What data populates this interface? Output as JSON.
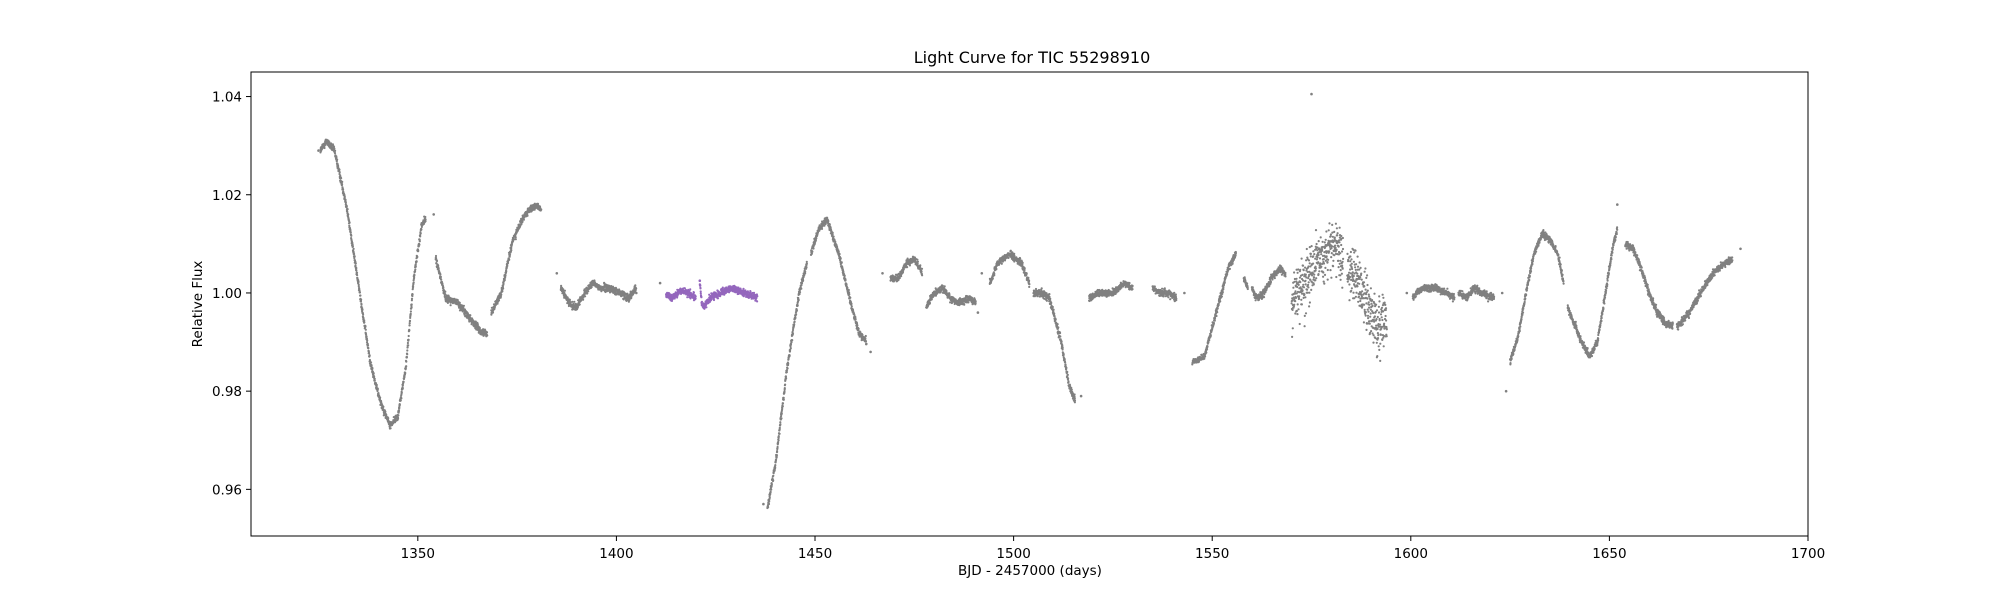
{
  "chart_data": {
    "type": "scatter",
    "title": "Light Curve for TIC 55298910",
    "xlabel": "BJD - 2457000 (days)",
    "ylabel": "Relative Flux",
    "xlim": [
      1308,
      1700
    ],
    "ylim": [
      0.9505,
      1.045
    ],
    "x_ticks": [
      1350,
      1400,
      1450,
      1500,
      1550,
      1600,
      1650,
      1700
    ],
    "x_tick_labels": [
      "1350",
      "1400",
      "1450",
      "1500",
      "1550",
      "1600",
      "1650",
      "1700"
    ],
    "y_ticks": [
      0.96,
      0.98,
      1.0,
      1.02,
      1.04
    ],
    "y_tick_labels": [
      "0.96",
      "0.98",
      "1.00",
      "1.02",
      "1.04"
    ],
    "grid": false,
    "legend": "none",
    "colors": {
      "main": "#808080",
      "highlight": "#9467bd"
    },
    "series": [
      {
        "color": "#808080",
        "noise": 0.0006,
        "segments": [
          [
            [
              1325.5,
              1.029
            ],
            [
              1327,
              1.031
            ],
            [
              1329,
              1.029
            ],
            [
              1332,
              1.018
            ],
            [
              1335,
              1.002
            ],
            [
              1338,
              0.986
            ],
            [
              1339.5,
              0.981
            ],
            [
              1341,
              0.977
            ],
            [
              1343,
              0.973
            ],
            [
              1345,
              0.975
            ],
            [
              1347,
              0.985
            ],
            [
              1349,
              1.003
            ],
            [
              1351,
              1.014
            ],
            [
              1352,
              1.015
            ]
          ],
          [
            [
              1354.5,
              1.007
            ],
            [
              1357,
              0.999
            ],
            [
              1360,
              0.998
            ],
            [
              1363,
              0.995
            ],
            [
              1366,
              0.992
            ],
            [
              1367.5,
              0.992
            ]
          ],
          [
            [
              1368.5,
              0.996
            ],
            [
              1371,
              1.0
            ],
            [
              1374,
              1.011
            ],
            [
              1377,
              1.016
            ],
            [
              1380,
              1.018
            ],
            [
              1381,
              1.017
            ]
          ],
          [
            [
              1386,
              1.001
            ],
            [
              1388,
              0.998
            ],
            [
              1390,
              0.997
            ],
            [
              1392,
              1.0
            ],
            [
              1394,
              1.002
            ],
            [
              1396,
              1.001
            ],
            [
              1398,
              1.001
            ],
            [
              1401,
              1.0
            ],
            [
              1403,
              0.999
            ],
            [
              1405,
              1.001
            ]
          ],
          [
            [
              1438,
              0.956
            ],
            [
              1440,
              0.965
            ],
            [
              1443,
              0.985
            ],
            [
              1446,
              1.0
            ],
            [
              1448,
              1.006
            ]
          ],
          [
            [
              1449,
              1.008
            ],
            [
              1451,
              1.013
            ],
            [
              1453,
              1.015
            ],
            [
              1456,
              1.008
            ],
            [
              1459,
              0.998
            ],
            [
              1461,
              0.992
            ],
            [
              1463,
              0.99
            ]
          ],
          [
            [
              1469,
              1.003
            ],
            [
              1471,
              1.003
            ],
            [
              1473,
              1.006
            ],
            [
              1475,
              1.007
            ],
            [
              1477,
              1.004
            ]
          ],
          [
            [
              1478,
              0.997
            ],
            [
              1480,
              1.0
            ],
            [
              1482,
              1.001
            ],
            [
              1484,
              0.999
            ],
            [
              1486,
              0.998
            ],
            [
              1489,
              0.999
            ],
            [
              1490.5,
              0.998
            ]
          ],
          [
            [
              1494,
              1.002
            ],
            [
              1496,
              1.006
            ],
            [
              1499,
              1.008
            ],
            [
              1502,
              1.006
            ],
            [
              1504,
              1.002
            ]
          ],
          [
            [
              1505,
              1.0
            ],
            [
              1507,
              1.0
            ],
            [
              1509,
              0.999
            ],
            [
              1512,
              0.99
            ],
            [
              1514,
              0.981
            ],
            [
              1515.5,
              0.978
            ]
          ],
          [
            [
              1519,
              0.999
            ],
            [
              1522,
              1.0
            ],
            [
              1525,
              1.0
            ],
            [
              1528,
              1.002
            ],
            [
              1530,
              1.001
            ]
          ],
          [
            [
              1535,
              1.001
            ],
            [
              1537,
              1.0
            ],
            [
              1539,
              1.0
            ],
            [
              1541,
              0.999
            ]
          ],
          [
            [
              1545,
              0.986
            ],
            [
              1548,
              0.987
            ],
            [
              1551,
              0.996
            ],
            [
              1554,
              1.005
            ],
            [
              1556,
              1.008
            ]
          ],
          [
            [
              1558,
              1.003
            ],
            [
              1559,
              1.001
            ]
          ],
          [
            [
              1560,
              1.001
            ],
            [
              1561,
              0.999
            ],
            [
              1563,
              1.0
            ],
            [
              1565,
              1.003
            ],
            [
              1567,
              1.005
            ],
            [
              1568.5,
              1.004
            ]
          ],
          [
            [
              1600.5,
              0.999
            ],
            [
              1603,
              1.001
            ],
            [
              1606,
              1.001
            ],
            [
              1609,
              1.0
            ],
            [
              1611,
              0.999
            ]
          ],
          [
            [
              1612,
              1.0
            ],
            [
              1614,
              0.999
            ],
            [
              1616,
              1.001
            ],
            [
              1618,
              1.0
            ],
            [
              1621,
              0.999
            ]
          ],
          [
            [
              1625,
              0.986
            ],
            [
              1627,
              0.991
            ],
            [
              1629,
              1.0
            ],
            [
              1631,
              1.008
            ],
            [
              1633,
              1.012
            ],
            [
              1635,
              1.011
            ],
            [
              1637,
              1.008
            ],
            [
              1638.5,
              1.002
            ]
          ],
          [
            [
              1639.5,
              0.997
            ],
            [
              1641,
              0.994
            ],
            [
              1643,
              0.99
            ],
            [
              1645,
              0.987
            ],
            [
              1647,
              0.99
            ],
            [
              1649,
              1.0
            ],
            [
              1651,
              1.01
            ],
            [
              1652,
              1.013
            ]
          ],
          [
            [
              1654,
              1.01
            ],
            [
              1656,
              1.009
            ],
            [
              1658,
              1.005
            ],
            [
              1660,
              1.0
            ],
            [
              1662,
              0.996
            ],
            [
              1664,
              0.994
            ],
            [
              1666,
              0.993
            ]
          ],
          [
            [
              1667,
              0.993
            ],
            [
              1670,
              0.996
            ],
            [
              1673,
              1.0
            ],
            [
              1676,
              1.004
            ],
            [
              1679,
              1.006
            ],
            [
              1681,
              1.007
            ]
          ]
        ],
        "outliers": [
          [
            1325,
            1.029
          ],
          [
            1354,
            1.016
          ],
          [
            1381,
            1.017
          ],
          [
            1385,
            1.004
          ],
          [
            1405,
            1.0
          ],
          [
            1411,
            1.002
          ],
          [
            1437,
            0.957
          ],
          [
            1464,
            0.988
          ],
          [
            1467,
            1.004
          ],
          [
            1491,
            0.996
          ],
          [
            1492,
            1.004
          ],
          [
            1517,
            0.979
          ],
          [
            1543,
            1.0
          ],
          [
            1558,
            1.003
          ],
          [
            1575,
            1.0405
          ],
          [
            1599,
            1.0
          ],
          [
            1623,
            1.0
          ],
          [
            1624,
            0.98
          ],
          [
            1652,
            1.018
          ],
          [
            1683,
            1.009
          ]
        ]
      },
      {
        "color": "#808080",
        "noise": 0.0045,
        "segments": [
          [
            [
              1570,
              0.998
            ],
            [
              1572,
              1.001
            ],
            [
              1574,
              1.003
            ],
            [
              1576,
              1.006
            ],
            [
              1578,
              1.008
            ],
            [
              1580,
              1.009
            ],
            [
              1582,
              1.008
            ],
            [
              1583,
              1.006
            ]
          ],
          [
            [
              1584,
              1.004
            ],
            [
              1586,
              1.004
            ],
            [
              1588,
              1.0
            ],
            [
              1590,
              0.995
            ],
            [
              1592,
              0.993
            ],
            [
              1594,
              0.994
            ]
          ]
        ],
        "outliers": []
      },
      {
        "color": "#9467bd",
        "noise": 0.0006,
        "segments": [
          [
            [
              1412.5,
              0.9995
            ],
            [
              1414,
              0.999
            ],
            [
              1416,
              1.0005
            ],
            [
              1418,
              1.0
            ],
            [
              1420,
              0.999
            ]
          ],
          [
            [
              1421,
              1.002
            ],
            [
              1421.5,
              0.998
            ],
            [
              1422,
              0.997
            ],
            [
              1423.5,
              0.999
            ],
            [
              1426,
              1.0
            ],
            [
              1429,
              1.001
            ],
            [
              1432,
              1.0
            ],
            [
              1434,
              0.9995
            ],
            [
              1435.5,
              0.999
            ]
          ]
        ],
        "outliers": [
          [
            1421,
            1.0025
          ]
        ]
      }
    ]
  }
}
